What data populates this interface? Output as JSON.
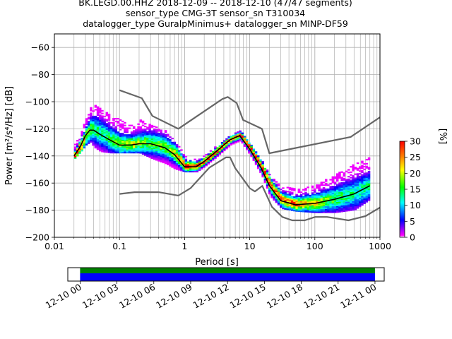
{
  "title": {
    "line1": "BK.LEGD.00.HHZ   2018-12-09 -- 2018-12-10  (47/47 segments)",
    "line2": "sensor_type CMG-3T sensor_sn T310034",
    "line3": "datalogger_type GuralpMinimus+ datalogger_sn MINP-DF59"
  },
  "chart_data": [
    {
      "type": "heatmap",
      "xlabel": "Period [s]",
      "ylabel": "Power [m²/s⁴/Hz] [dB]",
      "xscale": "log",
      "xlim": [
        0.01,
        1000
      ],
      "ylim": [
        -200,
        -50
      ],
      "xticks": [
        0.01,
        0.1,
        1,
        10,
        100,
        1000
      ],
      "xtick_labels": [
        "0.01",
        "0.1",
        "1",
        "10",
        "100",
        "1000"
      ],
      "yticks": [
        -200,
        -180,
        -160,
        -140,
        -120,
        -100,
        -80,
        -60
      ],
      "ytick_labels": [
        "−200",
        "−180",
        "−160",
        "−140",
        "−120",
        "−100",
        "−80",
        "−60"
      ],
      "grid": true,
      "colorbar": {
        "label": "[%]",
        "range": [
          0,
          30
        ],
        "ticks": [
          0,
          5,
          10,
          15,
          20,
          25,
          30
        ],
        "colormap": [
          "#ffffff",
          "#ff00ff",
          "#0000ff",
          "#00ffff",
          "#00ff00",
          "#ffff00",
          "#ff8000",
          "#ff0000"
        ]
      },
      "series": [
        {
          "name": "",
          "style": "mean",
          "color": "#000000",
          "x": [
            0.02,
            0.025,
            0.03,
            0.035,
            0.04,
            0.05,
            0.07,
            0.1,
            0.15,
            0.2,
            0.3,
            0.5,
            0.7,
            1,
            1.5,
            2,
            3,
            5,
            7,
            10,
            15,
            20,
            30,
            50,
            100,
            200,
            400,
            700
          ],
          "y": [
            -140,
            -133,
            -125,
            -121,
            -121,
            -124,
            -128,
            -132,
            -132,
            -131,
            -131,
            -134,
            -139,
            -148,
            -148,
            -144,
            -137,
            -128,
            -125,
            -135,
            -149,
            -162,
            -173,
            -176,
            -175,
            -172,
            -168,
            -162
          ]
        },
        {
          "name": "",
          "style": "noise-model-high",
          "color": "#666666",
          "x": [
            0.1,
            0.22,
            0.32,
            0.8,
            3.8,
            4.6,
            6.3,
            7.9,
            15.4,
            20,
            354.8,
            1000
          ],
          "y": [
            -91.5,
            -97.4,
            -110.5,
            -120,
            -98,
            -96.5,
            -101,
            -113.5,
            -120,
            -138,
            -126,
            -111.5
          ]
        },
        {
          "name": "",
          "style": "noise-model-low",
          "color": "#666666",
          "x": [
            0.1,
            0.17,
            0.4,
            0.8,
            1.24,
            2.4,
            4.3,
            5,
            6,
            10,
            12,
            15.6,
            21.9,
            31.6,
            45,
            70,
            101,
            154,
            328,
            600,
            1000
          ],
          "y": [
            -168,
            -166.7,
            -166.7,
            -169.2,
            -163.7,
            -148.6,
            -141.1,
            -141.1,
            -149,
            -163.8,
            -166.2,
            -162.1,
            -177.5,
            -185,
            -187.5,
            -187.5,
            -185,
            -185,
            -187.5,
            -184.4,
            -178
          ]
        }
      ],
      "density": [
        {
          "x": 0.02,
          "top": -132,
          "bot": -142,
          "mode": -140
        },
        {
          "x": 0.025,
          "top": -122,
          "bot": -137,
          "mode": -133
        },
        {
          "x": 0.03,
          "top": -112,
          "bot": -132,
          "mode": -125
        },
        {
          "x": 0.035,
          "top": -104,
          "bot": -130,
          "mode": -121
        },
        {
          "x": 0.04,
          "top": -103,
          "bot": -134,
          "mode": -121
        },
        {
          "x": 0.05,
          "top": -106,
          "bot": -137,
          "mode": -124
        },
        {
          "x": 0.07,
          "top": -110,
          "bot": -138,
          "mode": -128
        },
        {
          "x": 0.1,
          "top": -114,
          "bot": -138,
          "mode": -132
        },
        {
          "x": 0.15,
          "top": -118,
          "bot": -138,
          "mode": -132
        },
        {
          "x": 0.2,
          "top": -114,
          "bot": -138,
          "mode": -131
        },
        {
          "x": 0.3,
          "top": -117,
          "bot": -142,
          "mode": -131
        },
        {
          "x": 0.5,
          "top": -122,
          "bot": -146,
          "mode": -134
        },
        {
          "x": 0.7,
          "top": -130,
          "bot": -150,
          "mode": -139
        },
        {
          "x": 1,
          "top": -140,
          "bot": -152,
          "mode": -148
        },
        {
          "x": 1.5,
          "top": -143,
          "bot": -152,
          "mode": -148
        },
        {
          "x": 2,
          "top": -140,
          "bot": -148,
          "mode": -144
        },
        {
          "x": 3,
          "top": -133,
          "bot": -141,
          "mode": -137
        },
        {
          "x": 5,
          "top": -125,
          "bot": -132,
          "mode": -128
        },
        {
          "x": 7,
          "top": -122,
          "bot": -129,
          "mode": -125
        },
        {
          "x": 10,
          "top": -131,
          "bot": -140,
          "mode": -135
        },
        {
          "x": 15,
          "top": -144,
          "bot": -155,
          "mode": -149
        },
        {
          "x": 20,
          "top": -155,
          "bot": -170,
          "mode": -162
        },
        {
          "x": 30,
          "top": -163,
          "bot": -179,
          "mode": -173
        },
        {
          "x": 50,
          "top": -165,
          "bot": -181,
          "mode": -176
        },
        {
          "x": 100,
          "top": -162,
          "bot": -182,
          "mode": -175
        },
        {
          "x": 200,
          "top": -154,
          "bot": -182,
          "mode": -172
        },
        {
          "x": 400,
          "top": -146,
          "bot": -180,
          "mode": -168
        },
        {
          "x": 700,
          "top": -141,
          "bot": -172,
          "mode": -162
        }
      ]
    },
    {
      "type": "timeline",
      "xlim": [
        "2018-12-09 23:00",
        "2018-12-11 00:45"
      ],
      "coverage": [
        "2018-12-10 00:00",
        "2018-12-11 00:00"
      ],
      "coverage_colors": [
        "#008000",
        "#0000ff"
      ],
      "tick_labels": [
        "12-10 00",
        "12-10 03",
        "12-10 06",
        "12-10 09",
        "12-10 12",
        "12-10 15",
        "12-10 18",
        "12-10 21",
        "12-11 00"
      ],
      "tick_hours": [
        0,
        3,
        6,
        9,
        12,
        15,
        18,
        21,
        24
      ]
    }
  ]
}
